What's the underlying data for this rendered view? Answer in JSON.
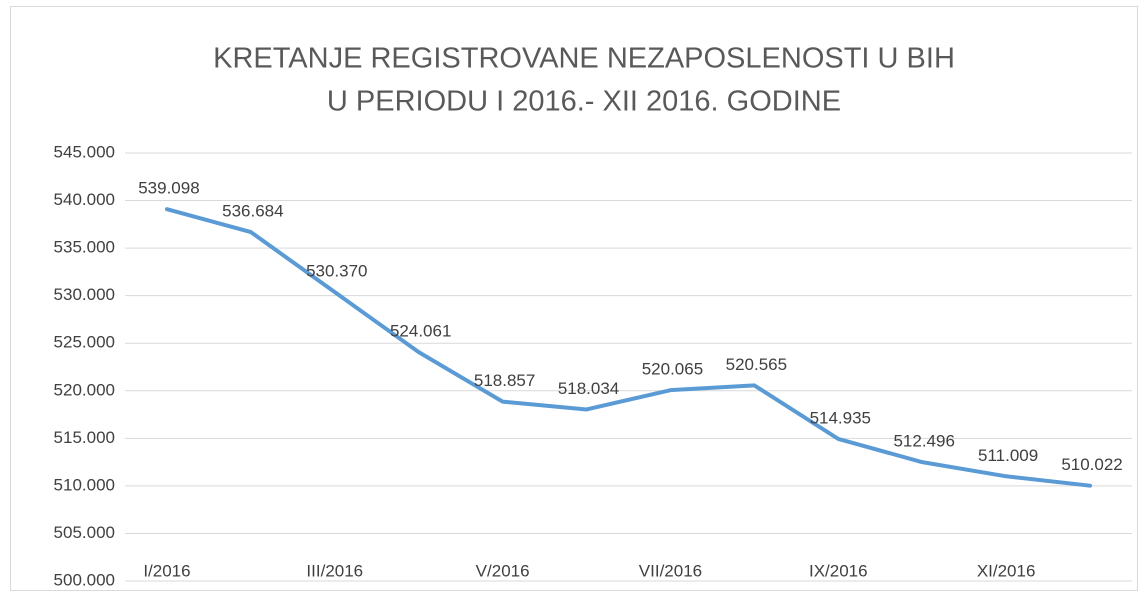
{
  "chart_data": {
    "type": "line",
    "title": [
      "KRETANJE REGISTROVANE NEZAPOSLENOSTI U BIH",
      "U PERIODU I 2016.- XII 2016. GODINE"
    ],
    "categories": [
      "I/2016",
      null,
      "III/2016",
      null,
      "V/2016",
      null,
      "VII/2016",
      null,
      "IX/2016",
      null,
      "XI/2016",
      null
    ],
    "series": [
      {
        "color": "#5b9bd5",
        "values": [
          539098,
          536684,
          530370,
          524061,
          518857,
          518034,
          520065,
          520565,
          514935,
          512496,
          511009,
          510022
        ],
        "value_labels": [
          "539.098",
          "536.684",
          "530.370",
          "524.061",
          "518.857",
          "518.034",
          "520.065",
          "520.565",
          "514.935",
          "512.496",
          "511.009",
          "510.022"
        ]
      }
    ],
    "ylim": [
      500000,
      545000
    ],
    "yticks": [
      {
        "value": 500000,
        "label": "500.000"
      },
      {
        "value": 505000,
        "label": "505.000"
      },
      {
        "value": 510000,
        "label": "510.000"
      },
      {
        "value": 515000,
        "label": "515.000"
      },
      {
        "value": 520000,
        "label": "520.000"
      },
      {
        "value": 525000,
        "label": "525.000"
      },
      {
        "value": 530000,
        "label": "530.000"
      },
      {
        "value": 535000,
        "label": "535.000"
      },
      {
        "value": 540000,
        "label": "540.000"
      },
      {
        "value": 545000,
        "label": "545.000"
      }
    ],
    "grid": true
  }
}
